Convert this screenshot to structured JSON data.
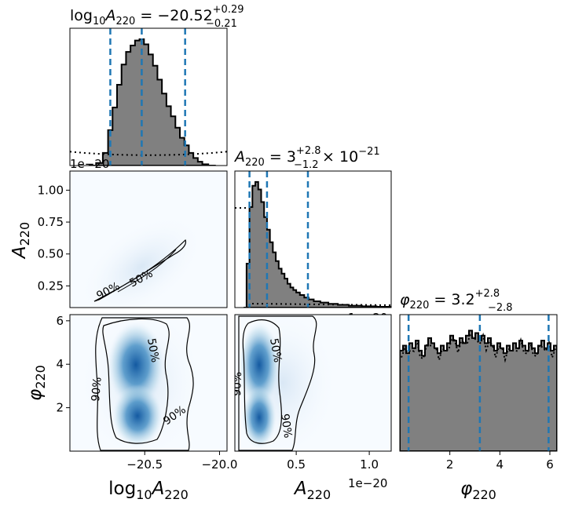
{
  "chart_data": [
    {
      "type": "histogram",
      "panel": "diag-logA",
      "title": "log10A220 = −20.52 +0.29/−0.21",
      "title_parts": {
        "lhs_base": "log",
        "lhs_sub": "10",
        "lhs_var": "A",
        "lhs_var_sub": "220",
        "eq": " = −20.52",
        "sup": "+0.29",
        "sub": "−0.21"
      },
      "offset_text": "1e−20",
      "x_range": [
        -21.0,
        -19.95
      ],
      "quantiles": [
        -20.73,
        -20.52,
        -20.23
      ],
      "posterior_color": "#808080",
      "quantile_color": "#1f77b4",
      "bins": [
        {
          "x": -20.85,
          "y": 0.0
        },
        {
          "x": -20.8,
          "y": 0.02
        },
        {
          "x": -20.76,
          "y": 0.1
        },
        {
          "x": -20.73,
          "y": 0.28
        },
        {
          "x": -20.7,
          "y": 0.46
        },
        {
          "x": -20.67,
          "y": 0.64
        },
        {
          "x": -20.64,
          "y": 0.8
        },
        {
          "x": -20.61,
          "y": 0.9
        },
        {
          "x": -20.58,
          "y": 0.95
        },
        {
          "x": -20.55,
          "y": 0.99
        },
        {
          "x": -20.52,
          "y": 1.0
        },
        {
          "x": -20.49,
          "y": 0.96
        },
        {
          "x": -20.46,
          "y": 0.88
        },
        {
          "x": -20.43,
          "y": 0.79
        },
        {
          "x": -20.4,
          "y": 0.68
        },
        {
          "x": -20.37,
          "y": 0.57
        },
        {
          "x": -20.34,
          "y": 0.47
        },
        {
          "x": -20.31,
          "y": 0.39
        },
        {
          "x": -20.28,
          "y": 0.3
        },
        {
          "x": -20.25,
          "y": 0.22
        },
        {
          "x": -20.22,
          "y": 0.16
        },
        {
          "x": -20.19,
          "y": 0.1
        },
        {
          "x": -20.16,
          "y": 0.06
        },
        {
          "x": -20.13,
          "y": 0.03
        },
        {
          "x": -20.1,
          "y": 0.01
        },
        {
          "x": -20.05,
          "y": 0.0
        }
      ],
      "prior_level": 0.09
    },
    {
      "type": "histogram",
      "panel": "diag-A",
      "title": "A220 = 3 +2.8/−1.2 × 10^−21",
      "title_parts": {
        "lhs_var": "A",
        "lhs_var_sub": "220",
        "eq": " = 3",
        "sup": "+2.8",
        "sub": "−1.2",
        "tail": " × 10",
        "exp": "−21"
      },
      "offset_text": "1e−20",
      "x_range": [
        0.08,
        1.15
      ],
      "quantiles": [
        0.18,
        0.3,
        0.58
      ],
      "bins": [
        {
          "x": 0.15,
          "y": 0.0
        },
        {
          "x": 0.17,
          "y": 0.35
        },
        {
          "x": 0.19,
          "y": 0.8
        },
        {
          "x": 0.21,
          "y": 0.97
        },
        {
          "x": 0.23,
          "y": 1.0
        },
        {
          "x": 0.25,
          "y": 0.94
        },
        {
          "x": 0.27,
          "y": 0.84
        },
        {
          "x": 0.29,
          "y": 0.72
        },
        {
          "x": 0.31,
          "y": 0.62
        },
        {
          "x": 0.33,
          "y": 0.52
        },
        {
          "x": 0.35,
          "y": 0.44
        },
        {
          "x": 0.37,
          "y": 0.37
        },
        {
          "x": 0.39,
          "y": 0.31
        },
        {
          "x": 0.41,
          "y": 0.27
        },
        {
          "x": 0.43,
          "y": 0.23
        },
        {
          "x": 0.45,
          "y": 0.19
        },
        {
          "x": 0.47,
          "y": 0.16
        },
        {
          "x": 0.49,
          "y": 0.14
        },
        {
          "x": 0.51,
          "y": 0.12
        },
        {
          "x": 0.54,
          "y": 0.1
        },
        {
          "x": 0.57,
          "y": 0.08
        },
        {
          "x": 0.6,
          "y": 0.065
        },
        {
          "x": 0.64,
          "y": 0.05
        },
        {
          "x": 0.69,
          "y": 0.04
        },
        {
          "x": 0.75,
          "y": 0.03
        },
        {
          "x": 0.82,
          "y": 0.022
        },
        {
          "x": 0.9,
          "y": 0.015
        },
        {
          "x": 1.0,
          "y": 0.01
        },
        {
          "x": 1.1,
          "y": 0.006
        }
      ]
    },
    {
      "type": "histogram",
      "panel": "diag-phi",
      "title": "φ220 = 3.2 +2.8/−2.8",
      "title_parts": {
        "lhs_var": "φ",
        "lhs_var_sub": "220",
        "eq": " = 3.2",
        "sup": "+2.8",
        "sub": "−2.8"
      },
      "x_range": [
        0.0,
        6.283
      ],
      "x_ticks": [
        2,
        4,
        6
      ],
      "xlabel": "φ220",
      "quantiles": [
        0.35,
        3.2,
        5.95
      ],
      "bins_flat_level": 0.82,
      "noise": [
        0.8,
        0.84,
        0.78,
        0.86,
        0.82,
        0.88,
        0.8,
        0.76,
        0.84,
        0.9,
        0.86,
        0.82,
        0.78,
        0.84,
        0.8,
        0.86,
        0.92,
        0.88,
        0.84,
        0.9,
        0.86,
        0.92,
        0.96,
        0.9,
        0.94,
        0.88,
        0.92,
        0.86,
        0.9,
        0.84,
        0.8,
        0.86,
        0.82,
        0.78,
        0.84,
        0.8,
        0.86,
        0.82,
        0.88,
        0.84,
        0.8,
        0.86,
        0.82,
        0.78,
        0.84,
        0.88,
        0.82,
        0.86,
        0.8,
        0.84
      ]
    },
    {
      "type": "contour",
      "panel": "logA-vs-A",
      "x_range": [
        -21.0,
        -19.95
      ],
      "y_range": [
        0.08,
        1.15
      ],
      "y_ticks": [
        0.25,
        0.5,
        0.75,
        1.0
      ],
      "y_tick_labels": [
        "0.25",
        "0.50",
        "0.75",
        "1.00"
      ],
      "ylabel": "A220",
      "contour_labels": [
        "90%",
        "50%"
      ]
    },
    {
      "type": "contour",
      "panel": "logA-vs-phi",
      "x_range": [
        -21.0,
        -19.95
      ],
      "y_range": [
        0.0,
        6.283
      ],
      "x_ticks": [
        -20.5,
        -20.0
      ],
      "x_tick_labels": [
        "−20.5",
        "−20.0"
      ],
      "y_ticks": [
        2,
        4,
        6
      ],
      "y_tick_labels": [
        "2",
        "4",
        "6"
      ],
      "xlabel": "log10A220",
      "ylabel": "φ220",
      "contour_labels": [
        "50%",
        "90%",
        "90%"
      ]
    },
    {
      "type": "contour",
      "panel": "A-vs-phi",
      "x_range": [
        0.08,
        1.15
      ],
      "y_range": [
        0.0,
        6.283
      ],
      "x_ticks": [
        0.5,
        1.0
      ],
      "x_tick_labels": [
        "0.5",
        "1.0"
      ],
      "xlabel": "A220",
      "offset_text": "1e−20",
      "contour_labels": [
        "50%",
        "90%",
        "90%"
      ]
    }
  ],
  "colors": {
    "hist_fill": "#808080",
    "quantile": "#1f77b4",
    "density_dark": "#08306b",
    "density_light": "#f7fbff"
  }
}
